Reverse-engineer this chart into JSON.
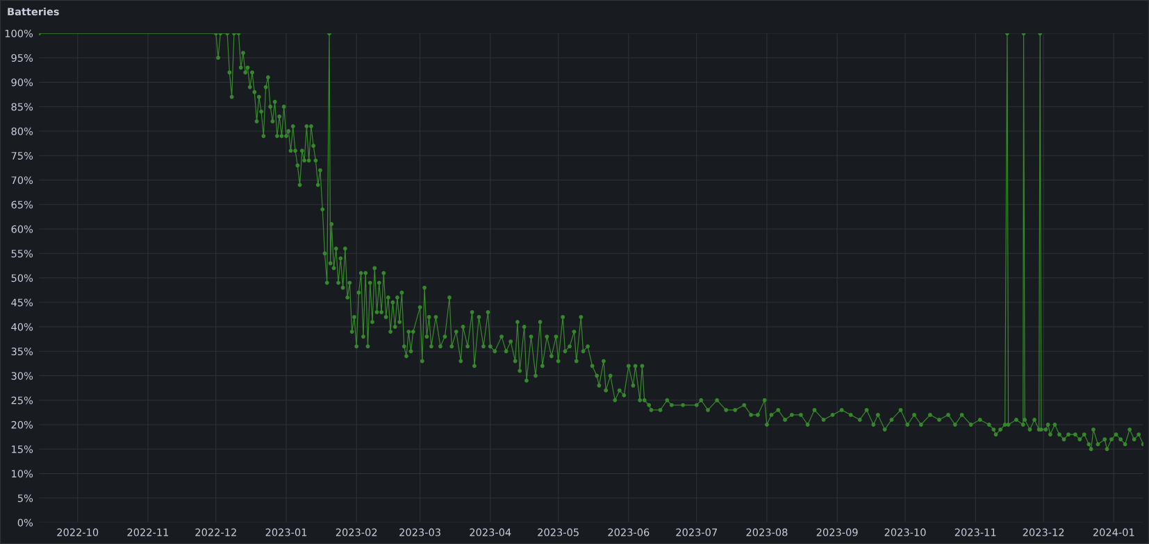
{
  "chart_data": {
    "type": "line",
    "title": "Batteries",
    "grid": true,
    "marker": "circle",
    "line_style": "solid",
    "xlim": [
      "2022-09-14",
      "2024-01-14"
    ],
    "xticks": [
      {
        "value": "2022-10-01",
        "label": "2022-10"
      },
      {
        "value": "2022-11-01",
        "label": "2022-11"
      },
      {
        "value": "2022-12-01",
        "label": "2022-12"
      },
      {
        "value": "2023-01-01",
        "label": "2023-01"
      },
      {
        "value": "2023-02-01",
        "label": "2023-02"
      },
      {
        "value": "2023-03-01",
        "label": "2023-03"
      },
      {
        "value": "2023-04-01",
        "label": "2023-04"
      },
      {
        "value": "2023-05-01",
        "label": "2023-05"
      },
      {
        "value": "2023-06-01",
        "label": "2023-06"
      },
      {
        "value": "2023-07-01",
        "label": "2023-07"
      },
      {
        "value": "2023-08-01",
        "label": "2023-08"
      },
      {
        "value": "2023-09-01",
        "label": "2023-09"
      },
      {
        "value": "2023-10-01",
        "label": "2023-10"
      },
      {
        "value": "2023-11-01",
        "label": "2023-11"
      },
      {
        "value": "2023-12-01",
        "label": "2023-12"
      },
      {
        "value": "2024-01-01",
        "label": "2024-01"
      }
    ],
    "ylim": [
      0,
      100
    ],
    "yticks": [
      {
        "value": 0,
        "label": "0%"
      },
      {
        "value": 5,
        "label": "5%"
      },
      {
        "value": 10,
        "label": "10%"
      },
      {
        "value": 15,
        "label": "15%"
      },
      {
        "value": 20,
        "label": "20%"
      },
      {
        "value": 25,
        "label": "25%"
      },
      {
        "value": 30,
        "label": "30%"
      },
      {
        "value": 35,
        "label": "35%"
      },
      {
        "value": 40,
        "label": "40%"
      },
      {
        "value": 45,
        "label": "45%"
      },
      {
        "value": 50,
        "label": "50%"
      },
      {
        "value": 55,
        "label": "55%"
      },
      {
        "value": 60,
        "label": "60%"
      },
      {
        "value": 65,
        "label": "65%"
      },
      {
        "value": 70,
        "label": "70%"
      },
      {
        "value": 75,
        "label": "75%"
      },
      {
        "value": 80,
        "label": "80%"
      },
      {
        "value": 85,
        "label": "85%"
      },
      {
        "value": 90,
        "label": "90%"
      },
      {
        "value": 95,
        "label": "95%"
      },
      {
        "value": 100,
        "label": "100%"
      }
    ],
    "series": [
      {
        "color": "#37872d",
        "x": [
          "2022-09-14",
          "2022-12-01",
          "2022-12-02",
          "2022-12-03",
          "2022-12-06",
          "2022-12-07",
          "2022-12-08",
          "2022-12-09",
          "2022-12-11",
          "2022-12-12",
          "2022-12-13",
          "2022-12-14",
          "2022-12-15",
          "2022-12-16",
          "2022-12-17",
          "2022-12-18",
          "2022-12-19",
          "2022-12-20",
          "2022-12-21",
          "2022-12-22",
          "2022-12-23",
          "2022-12-24",
          "2022-12-25",
          "2022-12-26",
          "2022-12-27",
          "2022-12-28",
          "2022-12-29",
          "2022-12-30",
          "2022-12-31",
          "2023-01-01",
          "2023-01-02",
          "2023-01-03",
          "2023-01-04",
          "2023-01-05",
          "2023-01-06",
          "2023-01-07",
          "2023-01-08",
          "2023-01-09",
          "2023-01-10",
          "2023-01-11",
          "2023-01-12",
          "2023-01-13",
          "2023-01-14",
          "2023-01-15",
          "2023-01-16",
          "2023-01-17",
          "2023-01-18",
          "2023-01-19",
          "2023-01-20",
          "2023-01-20T12:00",
          "2023-01-21",
          "2023-01-22",
          "2023-01-23",
          "2023-01-24",
          "2023-01-25",
          "2023-01-26",
          "2023-01-27",
          "2023-01-28",
          "2023-01-29",
          "2023-01-30",
          "2023-01-31",
          "2023-02-01",
          "2023-02-02",
          "2023-02-03",
          "2023-02-04",
          "2023-02-05",
          "2023-02-06",
          "2023-02-07",
          "2023-02-08",
          "2023-02-09",
          "2023-02-10",
          "2023-02-11",
          "2023-02-12",
          "2023-02-13",
          "2023-02-14",
          "2023-02-15",
          "2023-02-16",
          "2023-02-17",
          "2023-02-18",
          "2023-02-19",
          "2023-02-20",
          "2023-02-21",
          "2023-02-22",
          "2023-02-23",
          "2023-02-24",
          "2023-02-25",
          "2023-02-26",
          "2023-03-01",
          "2023-03-02",
          "2023-03-03",
          "2023-03-04",
          "2023-03-05",
          "2023-03-06",
          "2023-03-08",
          "2023-03-10",
          "2023-03-12",
          "2023-03-14",
          "2023-03-15",
          "2023-03-17",
          "2023-03-19",
          "2023-03-20",
          "2023-03-22",
          "2023-03-24",
          "2023-03-25",
          "2023-03-27",
          "2023-03-29",
          "2023-03-31",
          "2023-04-01",
          "2023-04-03",
          "2023-04-06",
          "2023-04-08",
          "2023-04-10",
          "2023-04-12",
          "2023-04-13",
          "2023-04-14",
          "2023-04-16",
          "2023-04-17",
          "2023-04-19",
          "2023-04-21",
          "2023-04-23",
          "2023-04-24",
          "2023-04-26",
          "2023-04-28",
          "2023-04-30",
          "2023-05-01",
          "2023-05-03",
          "2023-05-04",
          "2023-05-06",
          "2023-05-08",
          "2023-05-09",
          "2023-05-11",
          "2023-05-12",
          "2023-05-14",
          "2023-05-16",
          "2023-05-18",
          "2023-05-19",
          "2023-05-21",
          "2023-05-22",
          "2023-05-24",
          "2023-05-26",
          "2023-05-28",
          "2023-05-30",
          "2023-06-01",
          "2023-06-03",
          "2023-06-04",
          "2023-06-06",
          "2023-06-07",
          "2023-06-08",
          "2023-06-10",
          "2023-06-11",
          "2023-06-15",
          "2023-06-18",
          "2023-06-20",
          "2023-06-25",
          "2023-07-01",
          "2023-07-03",
          "2023-07-06",
          "2023-07-10",
          "2023-07-14",
          "2023-07-18",
          "2023-07-22",
          "2023-07-25",
          "2023-07-28",
          "2023-07-31",
          "2023-08-01",
          "2023-08-03",
          "2023-08-06",
          "2023-08-09",
          "2023-08-12",
          "2023-08-16",
          "2023-08-19",
          "2023-08-22",
          "2023-08-26",
          "2023-08-30",
          "2023-09-03",
          "2023-09-07",
          "2023-09-11",
          "2023-09-14",
          "2023-09-17",
          "2023-09-19",
          "2023-09-22",
          "2023-09-25",
          "2023-09-29",
          "2023-10-02",
          "2023-10-05",
          "2023-10-08",
          "2023-10-12",
          "2023-10-16",
          "2023-10-20",
          "2023-10-23",
          "2023-10-26",
          "2023-10-30",
          "2023-11-03",
          "2023-11-07",
          "2023-11-09",
          "2023-11-10",
          "2023-11-12",
          "2023-11-14",
          "2023-11-15",
          "2023-11-15T12:00",
          "2023-11-19",
          "2023-11-22",
          "2023-11-22T06:00",
          "2023-11-22T18:00",
          "2023-11-25",
          "2023-11-27",
          "2023-11-29",
          "2023-11-29T12:00",
          "2023-11-30",
          "2023-12-02",
          "2023-12-03",
          "2023-12-04",
          "2023-12-06",
          "2023-12-08",
          "2023-12-10",
          "2023-12-12",
          "2023-12-15",
          "2023-12-17",
          "2023-12-19",
          "2023-12-21",
          "2023-12-22",
          "2023-12-23",
          "2023-12-25",
          "2023-12-28",
          "2023-12-29",
          "2023-12-31",
          "2024-01-02",
          "2024-01-04",
          "2024-01-06",
          "2024-01-08",
          "2024-01-10",
          "2024-01-12",
          "2024-01-14"
        ],
        "values": [
          100,
          100,
          95,
          100,
          100,
          92,
          87,
          100,
          100,
          93,
          96,
          92,
          93,
          89,
          92,
          88,
          82,
          87,
          84,
          79,
          89,
          91,
          85,
          82,
          86,
          79,
          83,
          79,
          85,
          79,
          80,
          76,
          81,
          76,
          73,
          69,
          76,
          74,
          81,
          74,
          81,
          77,
          74,
          69,
          72,
          64,
          55,
          49,
          100,
          53,
          61,
          52,
          56,
          49,
          54,
          48,
          56,
          46,
          49,
          39,
          42,
          36,
          47,
          51,
          38,
          51,
          36,
          49,
          41,
          52,
          43,
          49,
          43,
          51,
          42,
          46,
          39,
          45,
          40,
          46,
          41,
          47,
          36,
          34,
          39,
          35,
          39,
          44,
          33,
          48,
          38,
          42,
          36,
          42,
          36,
          38,
          46,
          36,
          39,
          33,
          40,
          36,
          43,
          32,
          42,
          36,
          43,
          36,
          35,
          38,
          35,
          37,
          33,
          41,
          31,
          40,
          29,
          38,
          30,
          41,
          32,
          38,
          34,
          38,
          33,
          42,
          35,
          36,
          39,
          33,
          42,
          35,
          36,
          32,
          30,
          28,
          33,
          27,
          30,
          25,
          27,
          26,
          32,
          28,
          32,
          25,
          32,
          25,
          24,
          23,
          23,
          25,
          24,
          24,
          24,
          25,
          23,
          25,
          23,
          23,
          24,
          22,
          22,
          25,
          20,
          22,
          23,
          21,
          22,
          22,
          20,
          23,
          21,
          22,
          23,
          22,
          21,
          23,
          20,
          22,
          19,
          21,
          23,
          20,
          22,
          20,
          22,
          21,
          22,
          20,
          22,
          20,
          21,
          20,
          19,
          18,
          19,
          20,
          100,
          20,
          21,
          20,
          100,
          21,
          19,
          21,
          19,
          100,
          19,
          19,
          20,
          18,
          20,
          18,
          17,
          18,
          18,
          17,
          18,
          16,
          15,
          19,
          16,
          17,
          15,
          17,
          18,
          17,
          16,
          19,
          17,
          18,
          16
        ]
      }
    ]
  }
}
